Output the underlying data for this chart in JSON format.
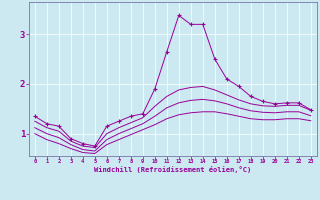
{
  "xlabel": "Windchill (Refroidissement éolien,°C)",
  "background_color": "#cce8f0",
  "line_color": "#990099",
  "x_ticks": [
    0,
    1,
    2,
    3,
    4,
    5,
    6,
    7,
    8,
    9,
    10,
    11,
    12,
    13,
    14,
    15,
    16,
    17,
    18,
    19,
    20,
    21,
    22,
    23
  ],
  "y_ticks": [
    1,
    2,
    3
  ],
  "ylim": [
    0.55,
    3.65
  ],
  "xlim": [
    -0.5,
    23.5
  ],
  "series": [
    {
      "x": [
        0,
        1,
        2,
        3,
        4,
        5,
        6,
        7,
        8,
        9,
        10,
        11,
        12,
        13,
        14,
        15,
        16,
        17,
        18,
        19,
        20,
        21,
        22,
        23
      ],
      "y": [
        1.35,
        1.2,
        1.15,
        0.9,
        0.8,
        0.75,
        1.15,
        1.25,
        1.35,
        1.4,
        1.9,
        2.65,
        3.38,
        3.2,
        3.2,
        2.5,
        2.1,
        1.95,
        1.75,
        1.65,
        1.6,
        1.62,
        1.62,
        1.48
      ],
      "marker": "+"
    },
    {
      "x": [
        0,
        1,
        2,
        3,
        4,
        5,
        6,
        7,
        8,
        9,
        10,
        11,
        12,
        13,
        14,
        15,
        16,
        17,
        18,
        19,
        20,
        21,
        22,
        23
      ],
      "y": [
        1.25,
        1.12,
        1.05,
        0.85,
        0.75,
        0.72,
        1.0,
        1.12,
        1.22,
        1.32,
        1.55,
        1.75,
        1.88,
        1.93,
        1.95,
        1.88,
        1.78,
        1.68,
        1.6,
        1.56,
        1.55,
        1.57,
        1.57,
        1.47
      ],
      "marker": null
    },
    {
      "x": [
        0,
        1,
        2,
        3,
        4,
        5,
        6,
        7,
        8,
        9,
        10,
        11,
        12,
        13,
        14,
        15,
        16,
        17,
        18,
        19,
        20,
        21,
        22,
        23
      ],
      "y": [
        1.12,
        1.0,
        0.92,
        0.78,
        0.68,
        0.65,
        0.88,
        1.0,
        1.1,
        1.2,
        1.35,
        1.52,
        1.62,
        1.67,
        1.69,
        1.66,
        1.6,
        1.52,
        1.46,
        1.43,
        1.42,
        1.44,
        1.44,
        1.36
      ],
      "marker": null
    },
    {
      "x": [
        0,
        1,
        2,
        3,
        4,
        5,
        6,
        7,
        8,
        9,
        10,
        11,
        12,
        13,
        14,
        15,
        16,
        17,
        18,
        19,
        20,
        21,
        22,
        23
      ],
      "y": [
        1.0,
        0.88,
        0.8,
        0.7,
        0.62,
        0.6,
        0.78,
        0.88,
        0.98,
        1.08,
        1.18,
        1.3,
        1.38,
        1.42,
        1.44,
        1.44,
        1.4,
        1.35,
        1.3,
        1.28,
        1.28,
        1.3,
        1.3,
        1.26
      ],
      "marker": null
    }
  ]
}
